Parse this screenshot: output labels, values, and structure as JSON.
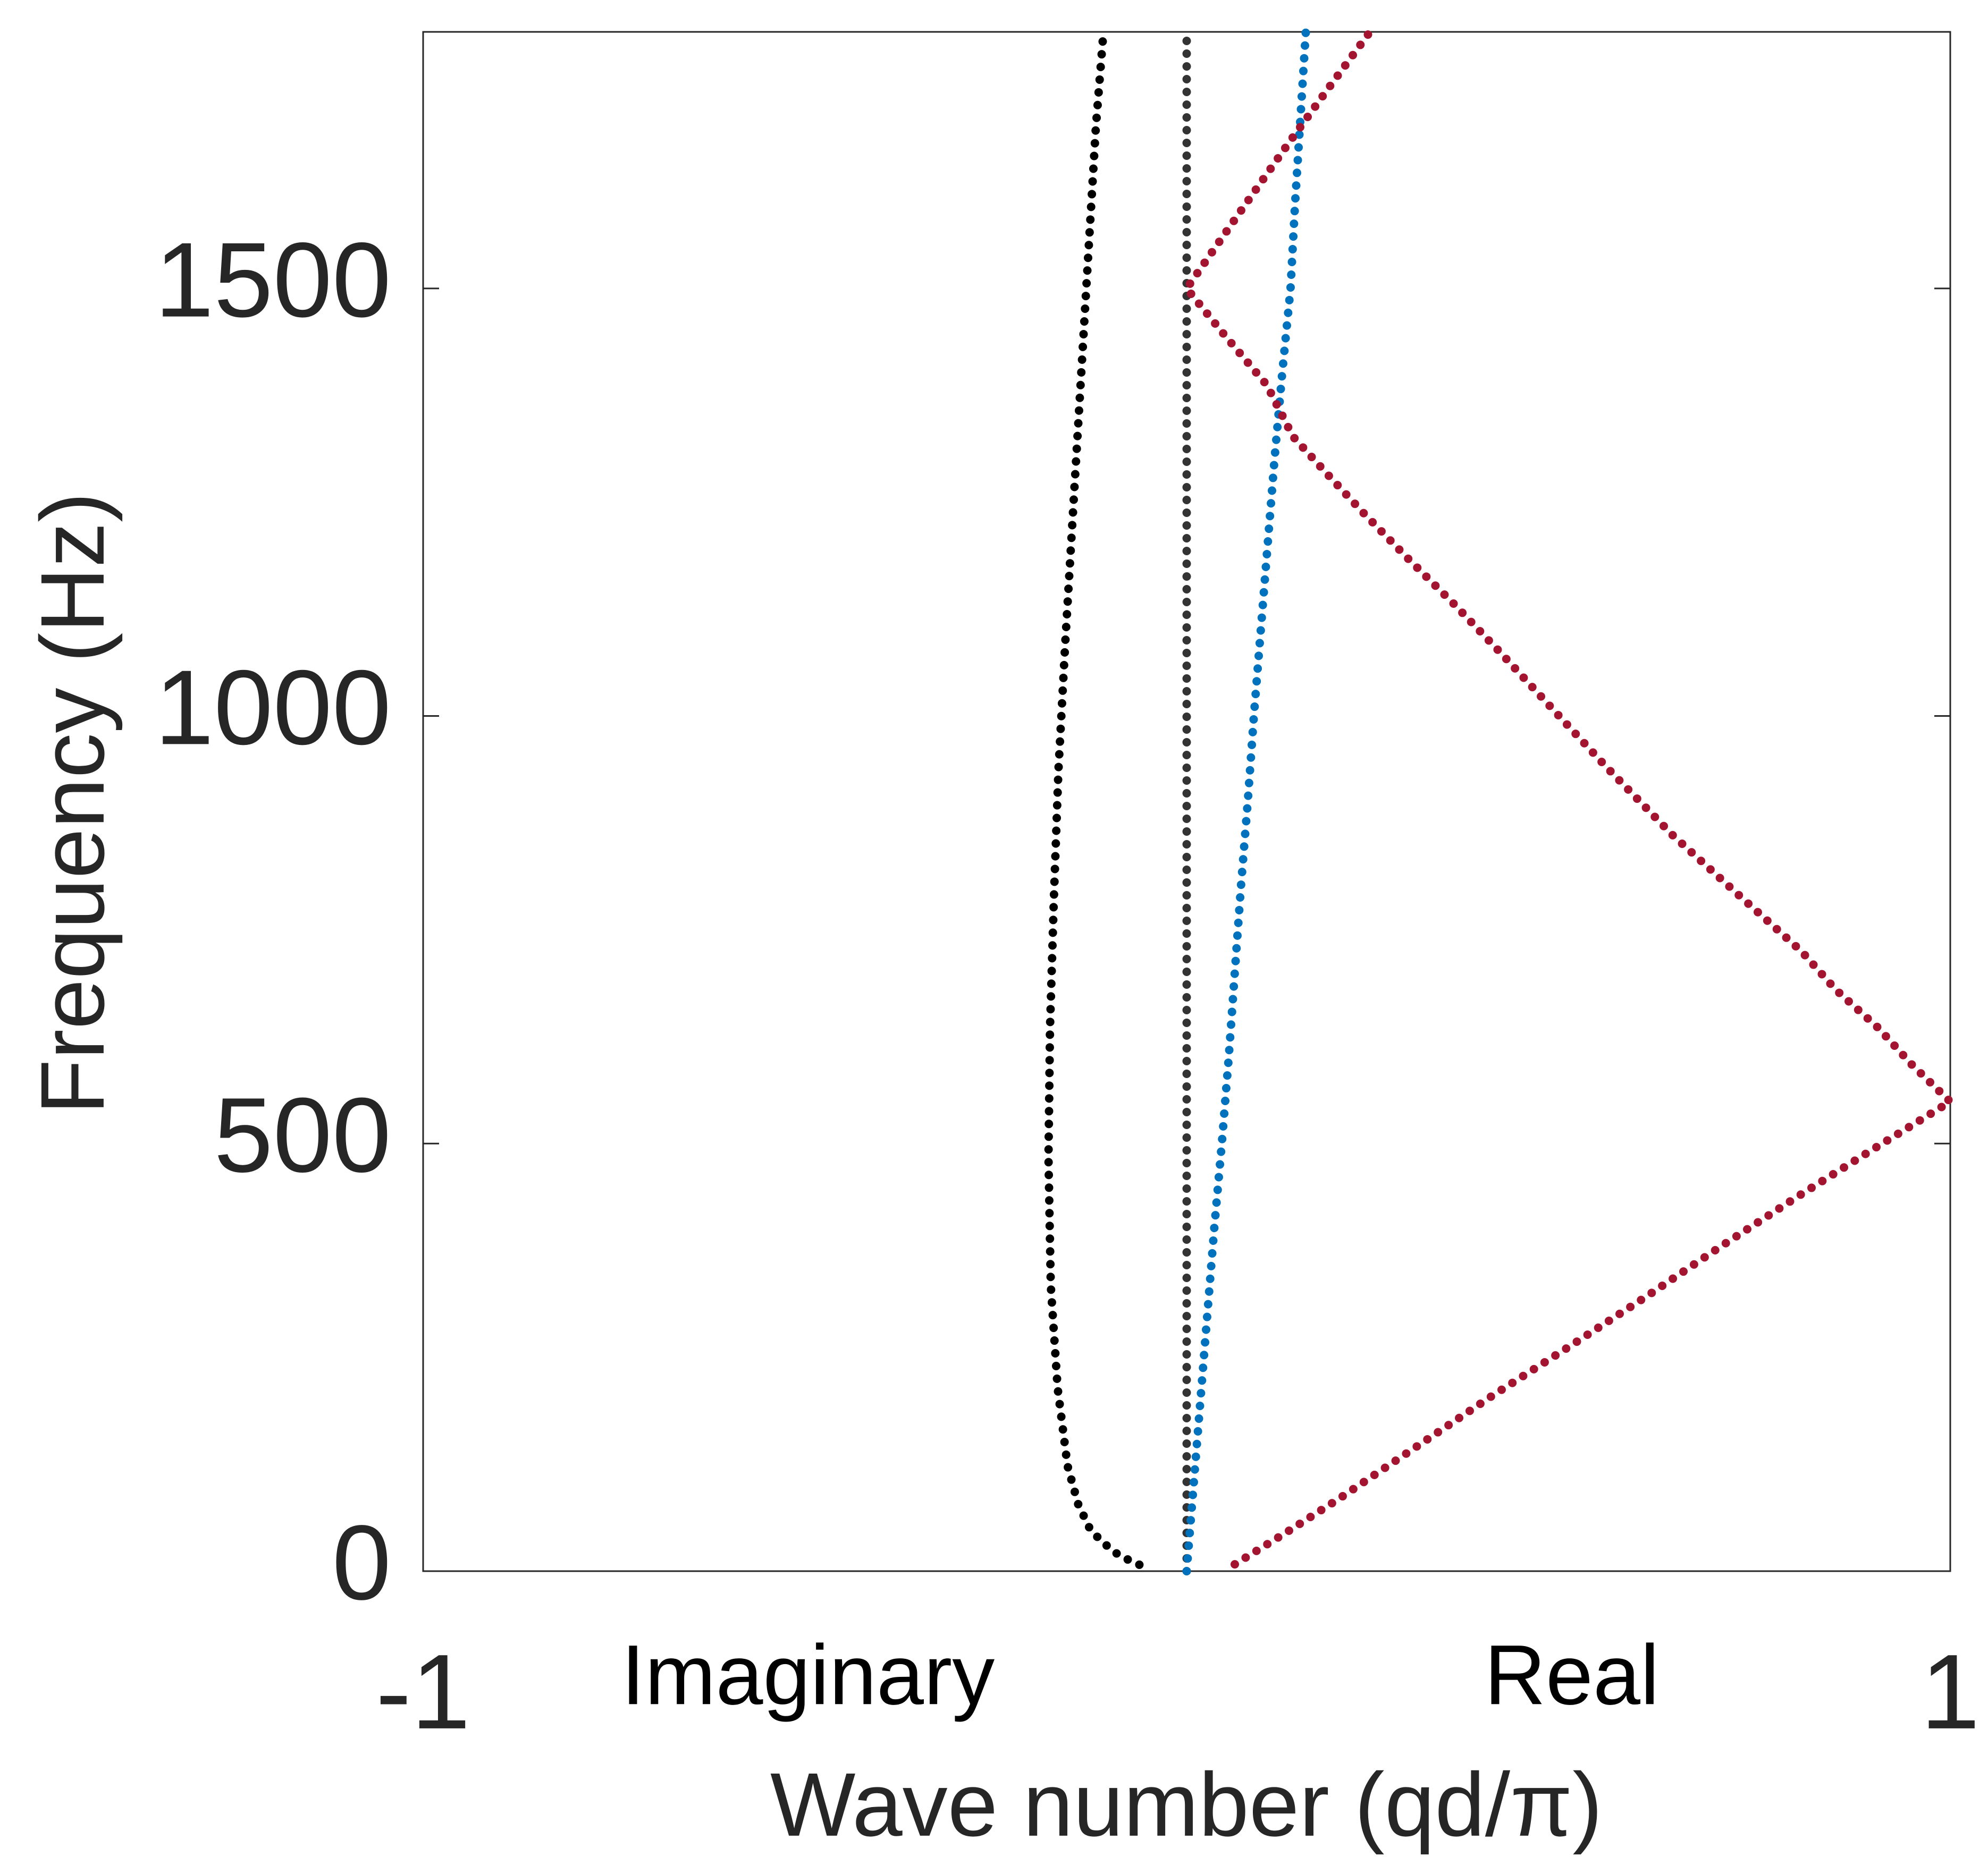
{
  "chart_data": {
    "type": "scatter",
    "xlabel": "Wave number (qd/π)",
    "ylabel": "Frequency (Hz)",
    "annotations": [
      "Imaginary",
      "Real"
    ],
    "xlim": [
      -1,
      1
    ],
    "xticks": [
      -1,
      1
    ],
    "ylim": [
      0,
      1800
    ],
    "yticks": [
      0,
      500,
      1000,
      1500
    ],
    "grid": false,
    "series": [
      {
        "color": "#000000",
        "x": [
          -0.062,
          -0.088,
          -0.109,
          -0.126,
          -0.142,
          -0.156,
          -0.169,
          -0.178,
          -0.181,
          -0.179,
          -0.174,
          -0.168,
          -0.159,
          -0.149,
          -0.139,
          -0.129,
          -0.119,
          -0.109
        ],
        "values": [
          7.5,
          18,
          33,
          48,
          78,
          123,
          214,
          334,
          484,
          635,
          785,
          936,
          1086,
          1237,
          1387,
          1538,
          1688,
          1800
        ]
      },
      {
        "color": "#333333",
        "x": [
          0,
          0,
          0,
          0,
          0,
          0,
          0,
          0,
          0,
          0,
          0,
          0,
          0,
          0,
          0,
          0,
          0,
          0,
          0
        ],
        "values": [
          0,
          100,
          200,
          300,
          400,
          500,
          600,
          700,
          800,
          900,
          1000,
          1100,
          1200,
          1300,
          1400,
          1500,
          1600,
          1700,
          1800
        ]
      },
      {
        "color": "#0072bd",
        "x": [
          0,
          0.009,
          0.018,
          0.027,
          0.036,
          0.046,
          0.055,
          0.063,
          0.071,
          0.08,
          0.088,
          0.097,
          0.106,
          0.115,
          0.125,
          0.136,
          0.142,
          0.149,
          0.156
        ],
        "values": [
          0,
          100,
          200,
          300,
          400,
          500,
          600,
          700,
          800,
          900,
          1000,
          1100,
          1200,
          1300,
          1400,
          1500,
          1600,
          1700,
          1800
        ]
      },
      {
        "color": "#a2142f",
        "x": [
          0.063,
          0.13,
          0.2,
          0.3,
          0.4,
          0.5,
          0.6,
          0.7,
          0.8,
          0.9,
          1,
          0.95,
          0.906,
          0.85,
          0.805,
          0.72,
          0.636,
          0.55,
          0.468,
          0.41,
          0.35,
          0.29,
          0.232,
          0.185,
          0.139,
          0.105,
          0.05,
          0,
          0.068,
          0.136,
          0.188,
          0.24
        ],
        "values": [
          8,
          45,
          85,
          145,
          205,
          262,
          320,
          380,
          438,
          494,
          549,
          592,
          635,
          680,
          725,
          793,
          861,
          940,
          1019,
          1075,
          1131,
          1184,
          1237,
          1282,
          1327,
          1387,
          1445,
          1500,
          1587,
          1673,
          1737,
          1800
        ]
      }
    ]
  }
}
